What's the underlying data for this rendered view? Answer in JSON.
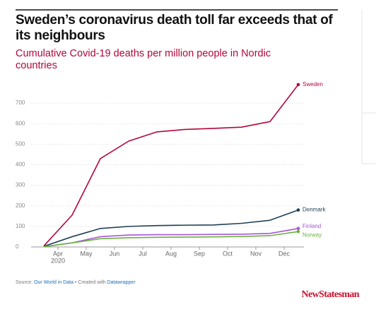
{
  "chart_data": {
    "type": "line",
    "title": "Sweden’s coronavirus death toll far exceeds that of its neighbours",
    "subtitle": "Cumulative Covid-19 deaths per million people in Nordic countries",
    "x": [
      "2020-03",
      "2020-04",
      "2020-05",
      "2020-06",
      "2020-07",
      "2020-08",
      "2020-09",
      "2020-10",
      "2020-11",
      "2020-12"
    ],
    "xticks": [
      {
        "value": "2020-04",
        "label": "Apr"
      },
      {
        "value": "2020-05",
        "label": "May"
      },
      {
        "value": "2020-06",
        "label": "Jun"
      },
      {
        "value": "2020-07",
        "label": "Jul"
      },
      {
        "value": "2020-08",
        "label": "Aug"
      },
      {
        "value": "2020-09",
        "label": "Sep"
      },
      {
        "value": "2020-10",
        "label": "Oct"
      },
      {
        "value": "2020-11",
        "label": "Nov"
      },
      {
        "value": "2020-12",
        "label": "Dec"
      }
    ],
    "x_year_label": "2020",
    "ylim": [
      0,
      800
    ],
    "yticks": [
      0,
      100,
      200,
      300,
      400,
      500,
      600,
      700
    ],
    "grid": true,
    "series": [
      {
        "name": "Sweden",
        "color": "#b3063a",
        "values": [
          5,
          155,
          430,
          515,
          560,
          572,
          577,
          583,
          610,
          790
        ]
      },
      {
        "name": "Denmark",
        "color": "#1e3f55",
        "values": [
          3,
          50,
          90,
          100,
          104,
          106,
          107,
          115,
          130,
          180
        ]
      },
      {
        "name": "Finland",
        "color": "#a855d8",
        "values": [
          1,
          20,
          50,
          58,
          60,
          60,
          61,
          62,
          66,
          90
        ]
      },
      {
        "name": "Norway",
        "color": "#6ab23f",
        "values": [
          1,
          20,
          40,
          45,
          47,
          48,
          49,
          51,
          55,
          75
        ]
      }
    ],
    "source": {
      "prefix": "Source:",
      "link1": "Our World in Data",
      "mid": "• Created with",
      "link2": "Datawrapper"
    },
    "brand": "NewStatesman"
  }
}
